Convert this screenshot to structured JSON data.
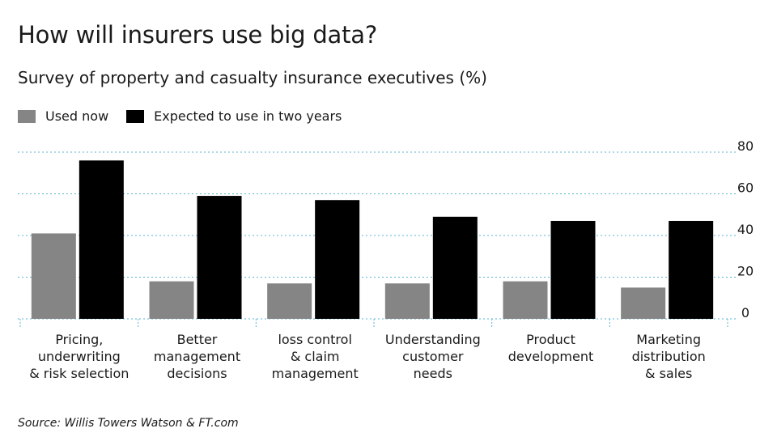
{
  "title": "How will insurers use big data?",
  "subtitle": "Survey of property and casualty insurance executives (%)",
  "source": "Source: Willis Towers Watson & FT.com",
  "colors": {
    "used_now": "#858585",
    "expected": "#000000",
    "gridline": "#5bb3d6"
  },
  "legend": [
    {
      "label": "Used now",
      "color": "#858585"
    },
    {
      "label": "Expected to use in two years",
      "color": "#000000"
    }
  ],
  "chart_data": {
    "type": "bar",
    "title": "How will insurers use big data?",
    "subtitle": "Survey of property and casualty insurance executives (%)",
    "categories": [
      [
        "Pricing,",
        "underwriting",
        "& risk selection"
      ],
      [
        "Better",
        "management",
        "decisions"
      ],
      [
        "loss control",
        "& claim",
        "management"
      ],
      [
        "Understanding",
        "customer",
        "needs"
      ],
      [
        "Product",
        "development"
      ],
      [
        "Marketing",
        "distribution",
        "& sales"
      ]
    ],
    "series": [
      {
        "name": "Used now",
        "values": [
          41,
          18,
          17,
          17,
          18,
          15
        ]
      },
      {
        "name": "Expected to use in two years",
        "values": [
          76,
          59,
          57,
          49,
          47,
          47
        ]
      }
    ],
    "ylim": [
      0,
      80
    ],
    "yticks": [
      0,
      20,
      40,
      60,
      80
    ],
    "y_axis_side": "right",
    "grid": true,
    "legend_position": "top-left"
  }
}
